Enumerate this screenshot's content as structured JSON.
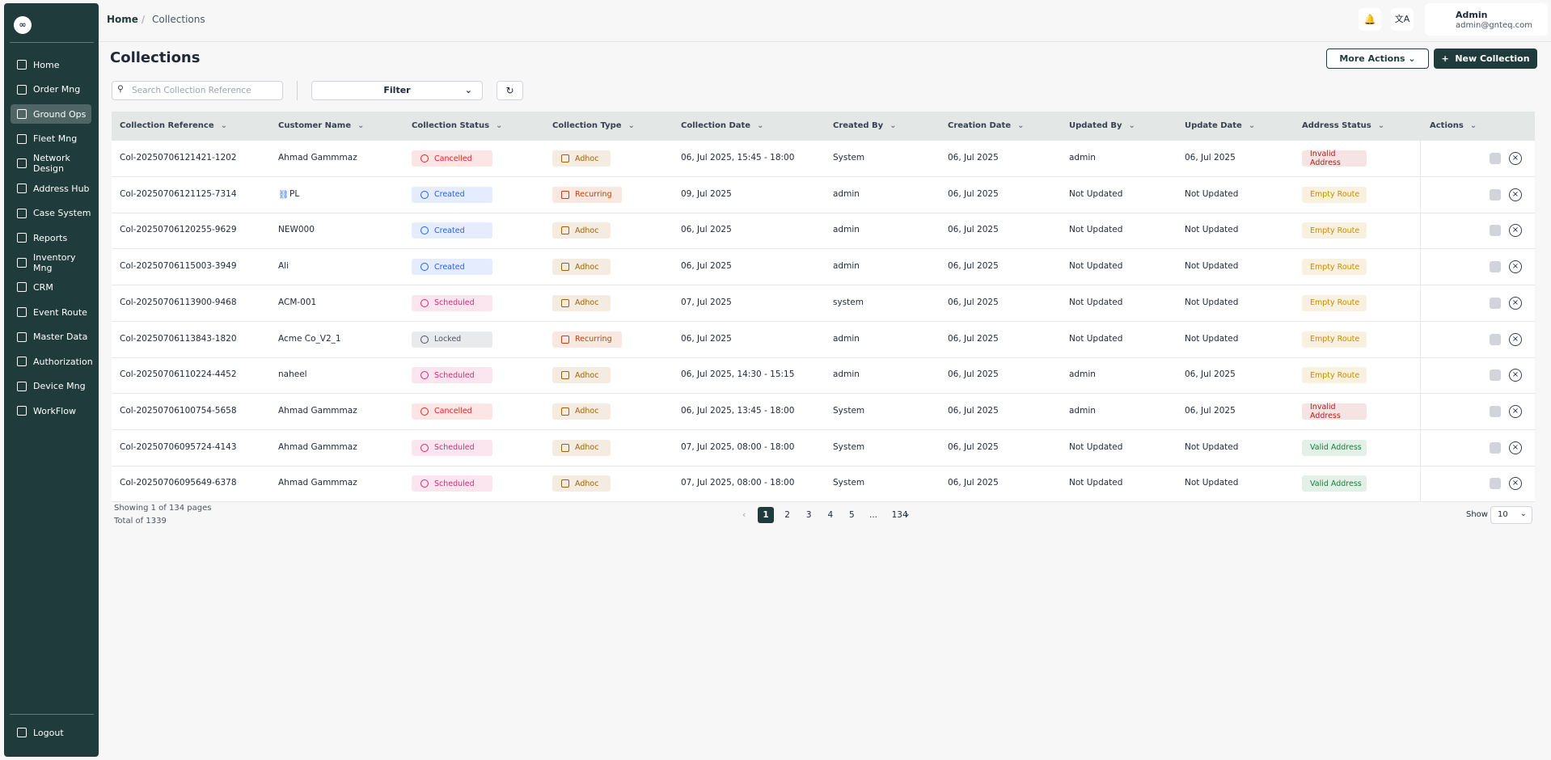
{
  "header": {
    "breadcrumb": [
      "Home",
      "Collections"
    ],
    "user_name": "Admin",
    "user_email": "admin@gnteq.com"
  },
  "sidebar": {
    "items": [
      "Home",
      "Order Mng",
      "Ground Ops",
      "Fleet Mng",
      "Network Design",
      "Address Hub",
      "Case System",
      "Reports",
      "Inventory Mng",
      "CRM",
      "Event Route",
      "Master Data",
      "Authorization",
      "Device Mng",
      "WorkFlow"
    ],
    "active": 2,
    "logout": "Logout"
  },
  "page": {
    "title": "Collections",
    "more_actions": "More Actions",
    "new_collection": "New Collection",
    "search_placeholder": "Search Collection Reference",
    "filter": "Filter"
  },
  "table": {
    "columns": [
      "Collection Reference",
      "Customer Name",
      "Collection Status",
      "Collection Type",
      "Collection Date",
      "Created By",
      "Creation Date",
      "Updated By",
      "Update Date",
      "Address Status",
      "Actions"
    ],
    "rows": [
      [
        "Col-20250706121421-1202",
        "Ahmad Gammmaz",
        {
          "text": "Cancelled",
          "color": "#dc2626"
        },
        {
          "text": "Adhoc",
          "color": "#a16207"
        },
        "06, Jul 2025, 15:45 - 18:00",
        "System",
        "06, Jul 2025",
        "admin",
        "06, Jul 2025",
        {
          "text": "Invalid Address",
          "color": "#b91c1c"
        }
      ],
      [
        "Col-20250706121125-7314",
        "PL",
        {
          "text": "Created",
          "color": "#2563eb"
        },
        {
          "text": "Recurring",
          "color": "#c2410c"
        },
        "09, Jul 2025",
        "admin",
        "06, Jul 2025",
        "Not Updated",
        "Not Updated",
        {
          "text": "Empty Route",
          "color": "#ca8a04"
        }
      ],
      [
        "Col-20250706120255-9629",
        "NEW000",
        {
          "text": "Created",
          "color": "#2563eb"
        },
        {
          "text": "Adhoc",
          "color": "#a16207"
        },
        "06, Jul 2025",
        "admin",
        "06, Jul 2025",
        "Not Updated",
        "Not Updated",
        {
          "text": "Empty Route",
          "color": "#ca8a04"
        }
      ],
      [
        "Col-20250706115003-3949",
        "Ali",
        {
          "text": "Created",
          "color": "#2563eb"
        },
        {
          "text": "Adhoc",
          "color": "#a16207"
        },
        "06, Jul 2025",
        "admin",
        "06, Jul 2025",
        "Not Updated",
        "Not Updated",
        {
          "text": "Empty Route",
          "color": "#ca8a04"
        }
      ],
      [
        "Col-20250706113900-9468",
        "ACM-001",
        {
          "text": "Scheduled",
          "color": "#db2777"
        },
        {
          "text": "Adhoc",
          "color": "#a16207"
        },
        "07, Jul 2025",
        "system",
        "06, Jul 2025",
        "Not Updated",
        "Not Updated",
        {
          "text": "Empty Route",
          "color": "#ca8a04"
        }
      ],
      [
        "Col-20250706113843-1820",
        "Acme Co_V2_1",
        {
          "text": "Locked",
          "color": "#4b5563"
        },
        {
          "text": "Recurring",
          "color": "#c2410c"
        },
        "06, Jul 2025",
        "admin",
        "06, Jul 2025",
        "Not Updated",
        "Not Updated",
        {
          "text": "Empty Route",
          "color": "#ca8a04"
        }
      ],
      [
        "Col-20250706110224-4452",
        "naheel",
        {
          "text": "Scheduled",
          "color": "#db2777"
        },
        {
          "text": "Adhoc",
          "color": "#a16207"
        },
        "06, Jul 2025, 14:30 - 15:15",
        "admin",
        "06, Jul 2025",
        "admin",
        "06, Jul 2025",
        {
          "text": "Empty Route",
          "color": "#ca8a04"
        }
      ],
      [
        "Col-20250706100754-5658",
        "Ahmad Gammmaz",
        {
          "text": "Cancelled",
          "color": "#dc2626"
        },
        {
          "text": "Adhoc",
          "color": "#a16207"
        },
        "06, Jul 2025, 13:45 - 18:00",
        "System",
        "06, Jul 2025",
        "admin",
        "06, Jul 2025",
        {
          "text": "Invalid Address",
          "color": "#b91c1c"
        }
      ],
      [
        "Col-20250706095724-4143",
        "Ahmad Gammmaz",
        {
          "text": "Scheduled",
          "color": "#db2777"
        },
        {
          "text": "Adhoc",
          "color": "#a16207"
        },
        "07, Jul 2025, 08:00 - 18:00",
        "System",
        "06, Jul 2025",
        "Not Updated",
        "Not Updated",
        {
          "text": "Valid Address",
          "color": "#15803d"
        }
      ],
      [
        "Col-20250706095649-6378",
        "Ahmad Gammmaz",
        {
          "text": "Scheduled",
          "color": "#db2777"
        },
        {
          "text": "Adhoc",
          "color": "#a16207"
        },
        "07, Jul 2025, 08:00 - 18:00",
        "System",
        "06, Jul 2025",
        "Not Updated",
        "Not Updated",
        {
          "text": "Valid Address",
          "color": "#15803d"
        }
      ]
    ]
  },
  "pagination": {
    "showing": "Showing 1 of 134 pages",
    "total": "Total of 1339",
    "pages": [
      "1",
      "2",
      "3",
      "4",
      "5",
      "...",
      "134"
    ],
    "current": 0,
    "show_label": "Show",
    "page_size": "10"
  }
}
